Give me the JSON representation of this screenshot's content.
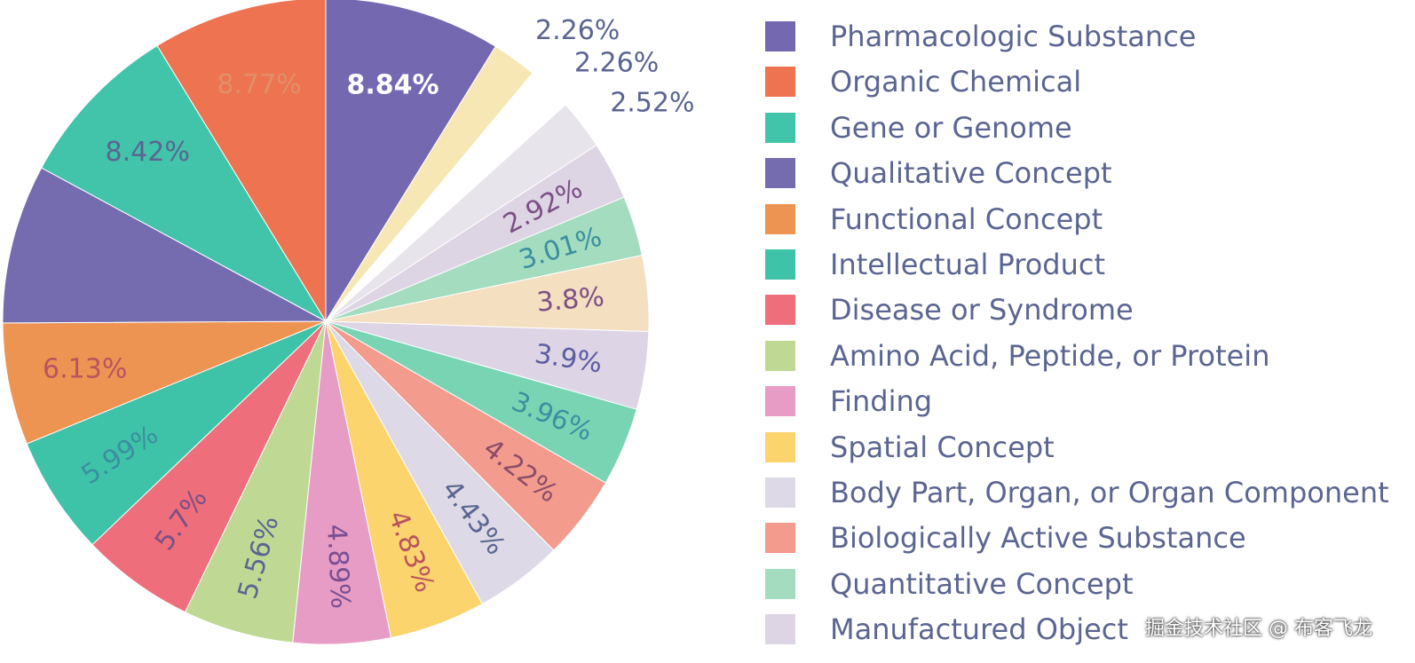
{
  "watermark": "掘金技术社区 @ 布客飞龙",
  "chart_data": {
    "type": "pie",
    "direction": "clockwise",
    "start": "12 o'clock",
    "slices": [
      {
        "label": "Pharmacologic Substance",
        "value": 8.84,
        "text": "8.84%",
        "color": "#7468b0",
        "text_color": "#ffffff",
        "text_pos": "inside"
      },
      {
        "label": "Spatial Concept",
        "value": 2.26,
        "text": "2.26%",
        "color": "#f7e7b4",
        "text_color": "#5b6591",
        "text_pos": "outside"
      },
      {
        "label": "Finding",
        "value": 2.26,
        "text": "2.26%",
        "color": "#ffffff",
        "text_color": "#5b6591",
        "text_pos": "outside"
      },
      {
        "label": "Body Part, Organ, or Organ Component",
        "value": 2.52,
        "text": "2.52%",
        "color": "#e8e4ec",
        "text_color": "#5b6591",
        "text_pos": "outside"
      },
      {
        "label": "Manufactured Object",
        "value": 2.92,
        "text": "2.92%",
        "color": "#ddd5e4",
        "text_color": "#7d4f86",
        "text_pos": "inside"
      },
      {
        "label": "Quantitative Concept",
        "value": 3.01,
        "text": "3.01%",
        "color": "#a3dcbf",
        "text_color": "#3b8fa0",
        "text_pos": "inside"
      },
      {
        "label": "Functional Concept",
        "value": 3.8,
        "text": "3.8%",
        "color": "#f4dfc1",
        "text_color": "#7d4f86",
        "text_pos": "inside"
      },
      {
        "label": "Qualitative Concept",
        "value": 3.9,
        "text": "3.9%",
        "color": "#ddd4e6",
        "text_color": "#5b5da0",
        "text_pos": "inside"
      },
      {
        "label": "Intellectual Product",
        "value": 3.96,
        "text": "3.96%",
        "color": "#79d4b4",
        "text_color": "#3b8fa0",
        "text_pos": "inside"
      },
      {
        "label": "Biologically Active Substance",
        "value": 4.22,
        "text": "4.22%",
        "color": "#f39b8d",
        "text_color": "#8c4d6a",
        "text_pos": "inside"
      },
      {
        "label": "Body Part, Organ, or Organ Component",
        "value": 4.43,
        "text": "4.43%",
        "color": "#ddd9e6",
        "text_color": "#5b6591",
        "text_pos": "inside"
      },
      {
        "label": "Spatial Concept",
        "value": 4.83,
        "text": "4.83%",
        "color": "#fcd46e",
        "text_color": "#b7545f",
        "text_pos": "inside"
      },
      {
        "label": "Finding",
        "value": 4.89,
        "text": "4.89%",
        "color": "#e79cc5",
        "text_color": "#7a4f92",
        "text_pos": "inside"
      },
      {
        "label": "Amino Acid, Peptide, or Protein",
        "value": 5.56,
        "text": "5.56%",
        "color": "#bfd995",
        "text_color": "#5b6591",
        "text_pos": "inside"
      },
      {
        "label": "Disease or Syndrome",
        "value": 5.7,
        "text": "5.7%",
        "color": "#ef6e7b",
        "text_color": "#7d4f86",
        "text_pos": "inside"
      },
      {
        "label": "Intellectual Product",
        "value": 5.99,
        "text": "5.99%",
        "color": "#3fc3a8",
        "text_color": "#3b8fa0",
        "text_pos": "inside"
      },
      {
        "label": "Functional Concept",
        "value": 6.13,
        "text": "6.13%",
        "color": "#ee9453",
        "text_color": "#b7545f",
        "text_pos": "inside"
      },
      {
        "label": "Qualitative Concept",
        "value": 7.99,
        "text": "",
        "color": "#756cb0",
        "text_color": "#5b6591",
        "text_pos": "inside"
      },
      {
        "label": "Gene or Genome",
        "value": 8.42,
        "text": "8.42%",
        "color": "#41c4aa",
        "text_color": "#5b6591",
        "text_pos": "inside"
      },
      {
        "label": "Organic Chemical",
        "value": 8.77,
        "text": "8.77%",
        "color": "#ee7350",
        "text_color": "#e08f6b",
        "text_pos": "inside"
      }
    ],
    "legend": [
      {
        "label": "Pharmacologic Substance",
        "color": "#7468b0"
      },
      {
        "label": "Organic Chemical",
        "color": "#ee7350"
      },
      {
        "label": "Gene or Genome",
        "color": "#41c4aa"
      },
      {
        "label": "Qualitative Concept",
        "color": "#756cb0"
      },
      {
        "label": "Functional Concept",
        "color": "#ee9453"
      },
      {
        "label": "Intellectual Product",
        "color": "#3fc3a8"
      },
      {
        "label": "Disease or Syndrome",
        "color": "#ef6e7b"
      },
      {
        "label": "Amino Acid, Peptide, or Protein",
        "color": "#bfd995"
      },
      {
        "label": "Finding",
        "color": "#e79cc5"
      },
      {
        "label": "Spatial Concept",
        "color": "#fcd46e"
      },
      {
        "label": "Body Part, Organ, or Organ Component",
        "color": "#ddd9e6"
      },
      {
        "label": "Biologically Active Substance",
        "color": "#f39b8d"
      },
      {
        "label": "Quantitative Concept",
        "color": "#a3dcbf"
      },
      {
        "label": "Manufactured Object",
        "color": "#ddd5e4"
      }
    ]
  }
}
